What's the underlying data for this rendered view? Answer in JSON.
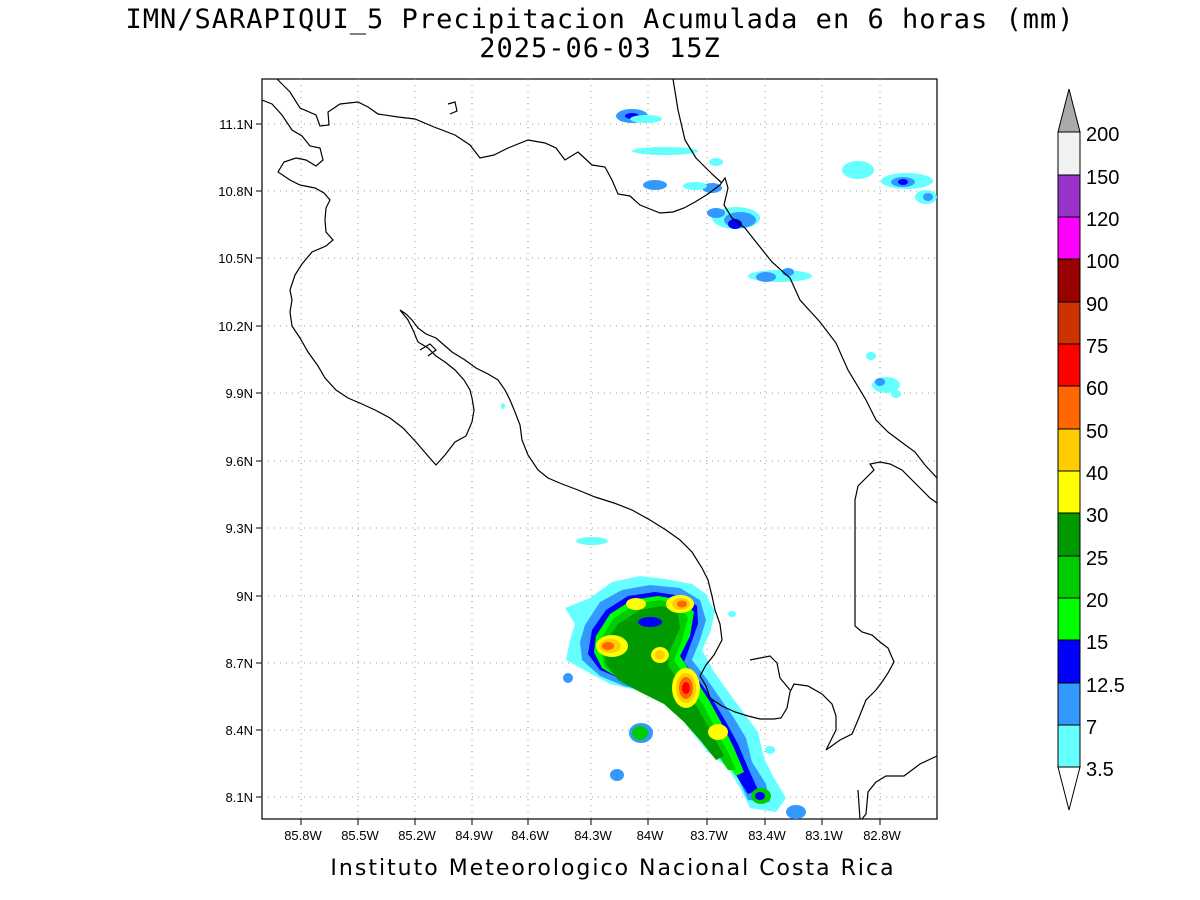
{
  "title": "IMN/SARAPIQUI_5 Precipitacion Acumulada en 6 horas (mm)",
  "subtitle": "2025-06-03 15Z",
  "credit": "Instituto Meteorologico Nacional Costa Rica",
  "map": {
    "lon_range": [
      -86.0,
      -82.6
    ],
    "lat_range": [
      8.0,
      11.3
    ],
    "lon_ticks": [
      "85.8W",
      "85.5W",
      "85.2W",
      "84.9W",
      "84.6W",
      "84.3W",
      "84W",
      "83.7W",
      "83.4W",
      "83.1W",
      "82.8W"
    ],
    "lat_ticks": [
      "11.1N",
      "10.8N",
      "10.5N",
      "10.2N",
      "9.9N",
      "9.6N",
      "9.3N",
      "9N",
      "8.7N",
      "8.4N",
      "8.1N"
    ],
    "grid": "dotted"
  },
  "colorbar": {
    "labels": [
      "3.5",
      "7",
      "12.5",
      "15",
      "20",
      "25",
      "30",
      "40",
      "50",
      "60",
      "75",
      "90",
      "100",
      "120",
      "150",
      "200"
    ],
    "colors": [
      "#66ffff",
      "#3399ff",
      "#0000ff",
      "#00ff00",
      "#00cc00",
      "#009900",
      "#ffff00",
      "#ffcc00",
      "#ff6600",
      "#ff0000",
      "#cc3300",
      "#990000",
      "#ff00ff",
      "#9933cc",
      "#f2f2f2",
      "#aaaaaa"
    ]
  }
}
